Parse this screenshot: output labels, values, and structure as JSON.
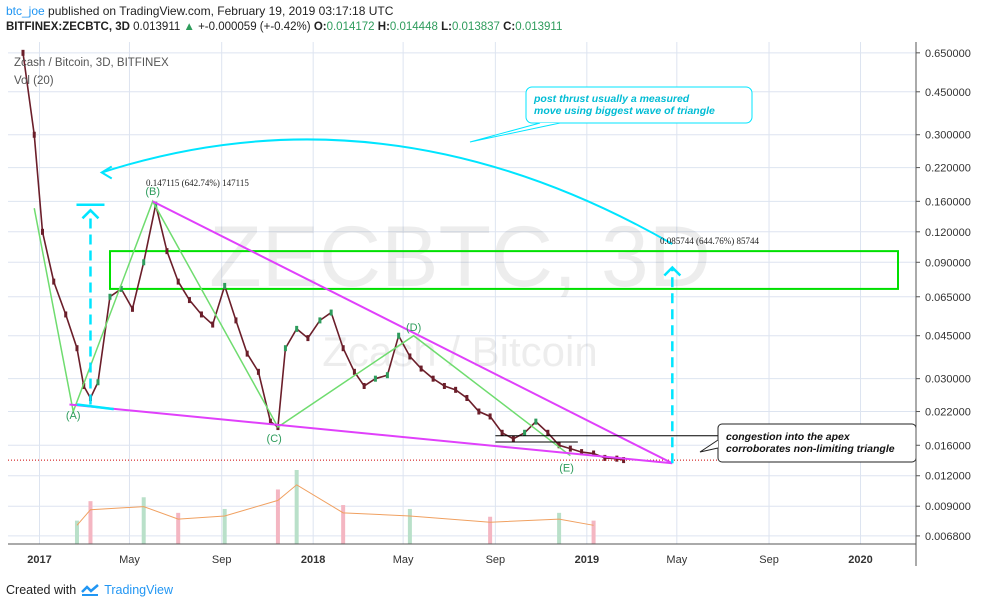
{
  "header": {
    "user": "btc_joe",
    "published": "published on TradingView.com, February 19, 2019 03:17:18 UTC",
    "symbol": "BITFINEX:ZECBTC, 3D",
    "price": "0.013911",
    "change_arrow": "▲",
    "change": "+-0.000059 (+-0.42%)",
    "o_label": "O:",
    "o_value": "0.014172",
    "h_label": "H:",
    "h_value": "0.014448",
    "l_label": "L:",
    "l_value": "0.013837",
    "c_label": "C:",
    "c_value": "0.013911"
  },
  "footer": {
    "created_with": "Created with",
    "brand": "TradingView",
    "logo_icon": "tradingview-logo-icon"
  },
  "colors": {
    "up": "#2e9c5c",
    "down": "#6b1e2a",
    "triangle_green": "#6fdc6f",
    "trendline": "#e040fb",
    "projection": "#00e5ff",
    "zone": "#00e000",
    "pricelines": "#cc0000"
  },
  "chart_data": {
    "type": "line",
    "title": "Zcash / Bitcoin, 3D, BITFINEX",
    "indicator": "Vol (20)",
    "watermark_main": "ZECBTC, 3D",
    "watermark_sub": "Zcash / Bitcoin",
    "y_scale": "log",
    "grid": true,
    "x_ticks": [
      "2017",
      "May",
      "Sep",
      "2018",
      "May",
      "Sep",
      "2019",
      "May",
      "Sep",
      "2020"
    ],
    "y_ticks": [
      "0.650000",
      "0.450000",
      "0.300000",
      "0.220000",
      "0.160000",
      "0.120000",
      "0.090000",
      "0.065000",
      "0.045000",
      "0.030000",
      "0.022000",
      "0.016000",
      "0.012000",
      "0.009000",
      "0.006800"
    ],
    "y_tick_values": [
      0.65,
      0.45,
      0.3,
      0.22,
      0.16,
      0.12,
      0.09,
      0.065,
      0.045,
      0.03,
      0.022,
      0.016,
      0.012,
      0.009,
      0.0068
    ],
    "ylim": [
      0.0063,
      0.72
    ],
    "xlim": [
      "2016-11-20",
      "2020-03-15"
    ],
    "current_price": 0.013911,
    "price_series": {
      "name": "",
      "x": [
        "2016-12-10",
        "2016-12-25",
        "2017-01-05",
        "2017-01-20",
        "2017-02-05",
        "2017-02-20",
        "2017-03-01",
        "2017-03-10",
        "2017-03-20",
        "2017-04-05",
        "2017-04-20",
        "2017-05-05",
        "2017-05-20",
        "2017-06-05",
        "2017-06-20",
        "2017-07-05",
        "2017-07-20",
        "2017-08-05",
        "2017-08-20",
        "2017-09-05",
        "2017-09-20",
        "2017-10-05",
        "2017-10-20",
        "2017-11-05",
        "2017-11-15",
        "2017-11-25",
        "2017-12-10",
        "2017-12-25",
        "2018-01-10",
        "2018-01-25",
        "2018-02-10",
        "2018-02-25",
        "2018-03-10",
        "2018-03-25",
        "2018-04-10",
        "2018-04-25",
        "2018-05-10",
        "2018-05-25",
        "2018-06-10",
        "2018-06-25",
        "2018-07-10",
        "2018-07-25",
        "2018-08-10",
        "2018-08-25",
        "2018-09-10",
        "2018-09-25",
        "2018-10-10",
        "2018-10-25",
        "2018-11-10",
        "2018-11-25",
        "2018-12-10",
        "2018-12-25",
        "2019-01-10",
        "2019-01-25",
        "2019-02-10",
        "2019-02-19"
      ],
      "y": [
        0.65,
        0.3,
        0.12,
        0.075,
        0.055,
        0.04,
        0.028,
        0.025,
        0.029,
        0.065,
        0.07,
        0.058,
        0.09,
        0.155,
        0.1,
        0.075,
        0.063,
        0.055,
        0.05,
        0.072,
        0.052,
        0.038,
        0.032,
        0.02,
        0.019,
        0.04,
        0.048,
        0.044,
        0.052,
        0.056,
        0.04,
        0.032,
        0.028,
        0.03,
        0.031,
        0.045,
        0.037,
        0.033,
        0.03,
        0.028,
        0.027,
        0.025,
        0.022,
        0.021,
        0.018,
        0.017,
        0.018,
        0.02,
        0.018,
        0.016,
        0.0155,
        0.015,
        0.0148,
        0.0142,
        0.0141,
        0.013911
      ]
    },
    "volume_series": {
      "name": "",
      "x": [
        "2017-02-20",
        "2017-03-10",
        "2017-05-20",
        "2017-07-05",
        "2017-09-05",
        "2017-11-15",
        "2017-12-10",
        "2018-02-10",
        "2018-05-10",
        "2018-08-25",
        "2018-11-25",
        "2019-01-10"
      ],
      "y": [
        30,
        55,
        60,
        40,
        45,
        70,
        95,
        50,
        45,
        35,
        40,
        30
      ]
    },
    "annotations": [
      {
        "text": "(A)",
        "x": "2017-02-15",
        "y": 0.0205
      },
      {
        "text": "(B)",
        "x": "2017-06-01",
        "y": 0.17
      },
      {
        "text": "(C)",
        "x": "2017-11-10",
        "y": 0.0165
      },
      {
        "text": "(D)",
        "x": "2018-05-15",
        "y": 0.047
      },
      {
        "text": "(E)",
        "x": "2018-12-05",
        "y": 0.0125
      },
      {
        "text": "0.147115 (642.74%) 147115",
        "x": "2016-12-25",
        "y": 0.185
      },
      {
        "text": "0.085744 (644.76%) 85744",
        "x": "2018-11-15",
        "y": 0.107
      },
      {
        "text": "post thrust usually a measured move using biggest wave of triangle",
        "x": "2018-07-01",
        "y": 0.4
      },
      {
        "text": "congestion into the apex corroborates non-limiting triangle",
        "x": "2019-05-01",
        "y": 0.016
      }
    ]
  }
}
